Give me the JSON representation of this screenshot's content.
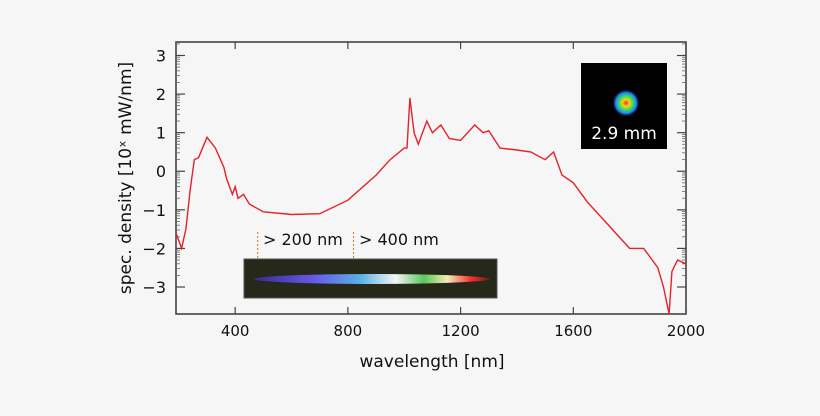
{
  "chart_data": {
    "type": "line",
    "title": "",
    "xlabel": "wavelength [nm]",
    "ylabel": "spec. density [10ˣ mW/nm]",
    "xlim": [
      190,
      2000
    ],
    "ylim": [
      -3.7,
      3.35
    ],
    "xticks": [
      400,
      800,
      1200,
      1600,
      2000
    ],
    "yticks": [
      -3,
      -2,
      -1,
      0,
      1,
      2,
      3
    ],
    "ytick_labels": [
      "−3",
      "−2",
      "−1",
      "0",
      "1",
      "2",
      "3"
    ],
    "grid": false,
    "series_color": "#e8202a",
    "x": [
      190,
      210,
      225,
      240,
      255,
      270,
      300,
      330,
      360,
      370,
      390,
      400,
      410,
      430,
      450,
      500,
      600,
      700,
      800,
      900,
      950,
      1000,
      1010,
      1020,
      1035,
      1050,
      1080,
      1100,
      1130,
      1160,
      1200,
      1250,
      1280,
      1300,
      1340,
      1400,
      1450,
      1500,
      1530,
      1560,
      1600,
      1650,
      1700,
      1750,
      1800,
      1850,
      1880,
      1900,
      1920,
      1940,
      1950,
      1970,
      2000
    ],
    "y": [
      -1.6,
      -2.0,
      -1.5,
      -0.5,
      0.3,
      0.35,
      0.88,
      0.6,
      0.1,
      -0.2,
      -0.6,
      -0.4,
      -0.7,
      -0.6,
      -0.85,
      -1.05,
      -1.12,
      -1.1,
      -0.75,
      -0.1,
      0.3,
      0.6,
      0.6,
      1.9,
      1.0,
      0.7,
      1.3,
      1.0,
      1.2,
      0.85,
      0.8,
      1.2,
      1.0,
      1.05,
      0.6,
      0.55,
      0.5,
      0.3,
      0.5,
      -0.1,
      -0.3,
      -0.8,
      -1.2,
      -1.6,
      -2.0,
      -2.0,
      -2.3,
      -2.5,
      -3.0,
      -3.7,
      -2.6,
      -2.3,
      -2.4
    ],
    "annotations": [
      {
        "text": "> 200 nm",
        "x": 480
      },
      {
        "text": "> 400 nm",
        "x": 820
      }
    ],
    "inset_beam_label": "2.9 mm"
  }
}
